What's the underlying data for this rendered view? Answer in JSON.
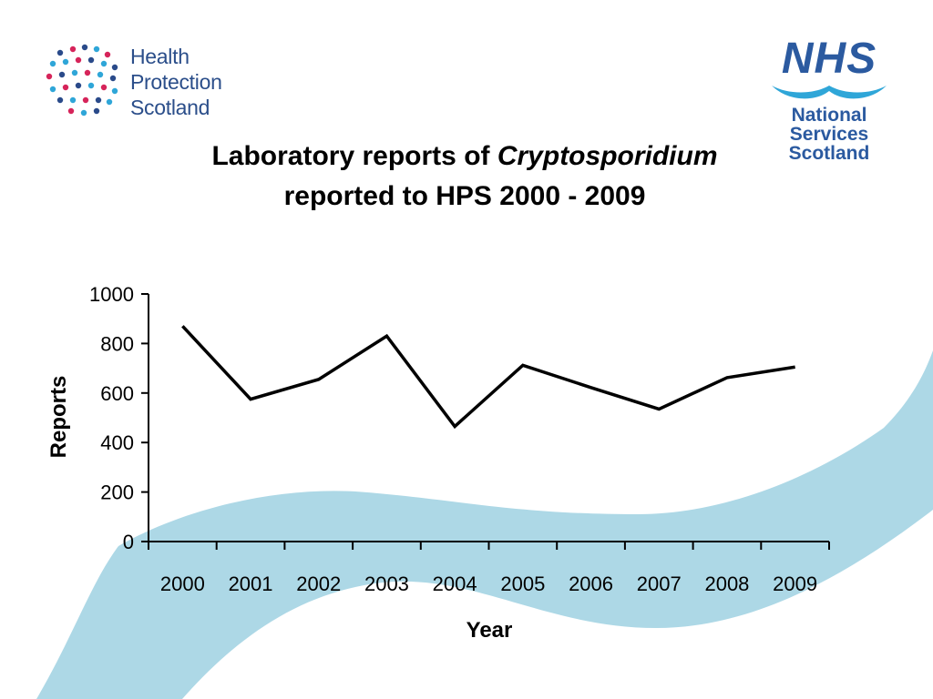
{
  "logos": {
    "hps": {
      "lines": [
        "Health",
        "Protection",
        "Scotland"
      ]
    },
    "nhs": {
      "mark": "NHS",
      "lines": [
        "National",
        "Services",
        "Scotland"
      ]
    }
  },
  "title": {
    "line1_prefix": "Laboratory reports of ",
    "line1_italic": "Cryptosporidium",
    "line2": "reported to HPS  2000 - 2009"
  },
  "colors": {
    "wave": "#add8e6",
    "brand_blue": "#2b5aa0",
    "line": "#000000"
  },
  "chart_data": {
    "type": "line",
    "categories": [
      "2000",
      "2001",
      "2002",
      "2003",
      "2004",
      "2005",
      "2006",
      "2007",
      "2008",
      "2009"
    ],
    "series": [
      {
        "values": [
          870,
          575,
          655,
          830,
          465,
          712,
          622,
          535,
          662,
          705
        ]
      }
    ],
    "xlabel": "Year",
    "ylabel": "Reports",
    "ylim": [
      0,
      1000
    ],
    "yticks": [
      0,
      200,
      400,
      600,
      800,
      1000
    ],
    "grid": false,
    "legend": "none"
  }
}
